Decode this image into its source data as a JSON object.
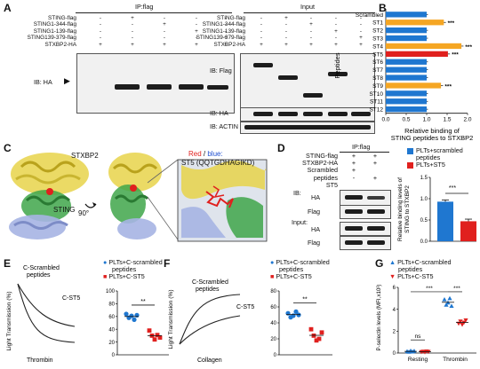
{
  "panels": {
    "A": {
      "letter": "A",
      "ipflag_title": "IP:flag",
      "input_title": "Input",
      "row_labels": [
        "STING-flag",
        "STING1-344-flag",
        "STING1-139-flag",
        "STING139-379-flag",
        "STXBP2-HA"
      ],
      "signs": [
        [
          "-",
          "+",
          "-",
          "-",
          "-"
        ],
        [
          "-",
          "-",
          "+",
          "-",
          "-"
        ],
        [
          "-",
          "-",
          "-",
          "+",
          "-"
        ],
        [
          "-",
          "-",
          "-",
          "-",
          "+"
        ],
        [
          "+",
          "+",
          "+",
          "+",
          "+"
        ]
      ],
      "ib_ha": "IB:  HA",
      "ib_flag": "IB:  Flag",
      "ib_ha2": "IB:  HA",
      "ib_actin": "IB:  ACTIN"
    },
    "B": {
      "letter": "B",
      "ylabel": "Peptides",
      "xlabel_line1": "Relative binding of",
      "xlabel_line2": "STING peptides to STXBP2",
      "stars": "***"
    },
    "C": {
      "letter": "C",
      "stxbp2": "STXBP2",
      "sting": "STING",
      "rotation": "90°",
      "legend_red": "Red",
      "legend_sep": " / ",
      "legend_blue": "blue:",
      "legend_tail": "",
      "st5": "ST5 (QQTGDHAGIKD)"
    },
    "D": {
      "letter": "D",
      "ipflag_title": "IP:flag",
      "rows": [
        "STING-flag",
        "STXBP2-HA",
        "Scrambled",
        "peptides",
        "ST5"
      ],
      "signs": [
        [
          "+",
          "+"
        ],
        [
          "+",
          "+"
        ],
        [
          "+",
          ""
        ],
        [
          "",
          ""
        ],
        [
          "-",
          "+"
        ]
      ],
      "ib": "IB:",
      "ha": "HA",
      "flag": "Flag",
      "input": "Input:",
      "ha2": "HA",
      "flag2": "Flag",
      "legend1": "PLTs+scrambled",
      "legend1b": "peptides",
      "legend2": "PLTs+ST5",
      "ylabel1": "Relative binding levels of",
      "ylabel2": "STING to STXBP2",
      "stars": "***"
    },
    "E": {
      "letter": "E",
      "curve_label1": "C-Scrambled",
      "curve_label2": "peptides",
      "curve_label3": "C-ST5",
      "xlabel": "Thrombin",
      "ylabel": "Light Transmission (%)",
      "legend1": "PLTs+C-scrambled",
      "legend1b": "peptides",
      "legend2": "PLTs+C-ST5",
      "dot_ylabel": "Platelet Aggregation (%)",
      "stars": "**"
    },
    "F": {
      "letter": "F",
      "curve_label1": "C-Scrambled",
      "curve_label2": "peptides",
      "curve_label3": "C-ST5",
      "xlabel": "Collagen",
      "ylabel": "Light Transmission (%)",
      "legend1": "PLTs+C-scrambled",
      "legend1b": "peptides",
      "legend2": "PLTs+C-ST5",
      "dot_ylabel": "Platelet Aggregation (%)",
      "stars": "**"
    },
    "G": {
      "letter": "G",
      "legend1": "PLTs+C-scrambled",
      "legend1b": "peptides",
      "legend2": "PLTs+C-ST5",
      "ylabel": "P-selectin levels (MFI,x10³)",
      "ns": "ns",
      "stars1": "***",
      "stars2": "***"
    }
  },
  "colors": {
    "blue": "#1f77d0",
    "red": "#e0201e",
    "orange": "#f5a623",
    "yellow": "#e8d44a",
    "green": "#3fa64a",
    "lavender": "#a6b4e3"
  },
  "chart_data": [
    {
      "id": "B",
      "type": "bar",
      "orientation": "horizontal",
      "categories": [
        "Scrambled",
        "ST1",
        "ST2",
        "ST3",
        "ST4",
        "ST5",
        "ST6",
        "ST7",
        "ST8",
        "ST9",
        "ST10",
        "ST11",
        "ST12"
      ],
      "values": [
        1.0,
        1.42,
        1.0,
        1.0,
        1.85,
        1.52,
        1.0,
        1.0,
        1.0,
        1.35,
        1.0,
        1.0,
        1.0
      ],
      "errors": [
        0.03,
        0.05,
        0.03,
        0.03,
        0.05,
        0.05,
        0.03,
        0.03,
        0.03,
        0.05,
        0.03,
        0.03,
        0.03
      ],
      "highlight": {
        "ST1": "orange",
        "ST4": "orange",
        "ST9": "orange",
        "ST5": "red"
      },
      "significant": [
        "ST1",
        "ST4",
        "ST5",
        "ST9"
      ],
      "xlim": [
        0,
        2.0
      ],
      "xticks": [
        "0.0",
        "0.5",
        "1.0",
        "1.5",
        "2.0"
      ],
      "ylabel": "Peptides"
    },
    {
      "id": "D",
      "type": "bar",
      "categories": [
        "PLTs+scrambled peptides",
        "PLTs+ST5"
      ],
      "values": [
        0.93,
        0.47
      ],
      "errors": [
        0.04,
        0.05
      ],
      "ylim": [
        0,
        1.5
      ],
      "yticks": [
        "0.0",
        "0.5",
        "1.0",
        "1.5"
      ]
    },
    {
      "id": "E",
      "type": "scatter",
      "groups": [
        {
          "name": "PLTs+C-scrambled peptides",
          "values": [
            64,
            58,
            61,
            55,
            62
          ]
        },
        {
          "name": "PLTs+C-ST5",
          "values": [
            38,
            30,
            24,
            31,
            27
          ]
        }
      ],
      "ylim": [
        0,
        100
      ],
      "yticks": [
        "0",
        "20",
        "40",
        "60",
        "80",
        "100"
      ]
    },
    {
      "id": "F",
      "type": "scatter",
      "groups": [
        {
          "name": "PLTs+C-scrambled peptides",
          "values": [
            52,
            47,
            49,
            54,
            50
          ]
        },
        {
          "name": "PLTs+C-ST5",
          "values": [
            32,
            24,
            18,
            20,
            28
          ]
        }
      ],
      "ylim": [
        0,
        80
      ],
      "yticks": [
        "0",
        "20",
        "40",
        "60",
        "80"
      ]
    },
    {
      "id": "G",
      "type": "scatter",
      "categories": [
        "Resting",
        "Thrombin"
      ],
      "groups": [
        {
          "name": "PLTs+C-scrambled peptides",
          "resting": [
            0.15,
            0.1,
            0.2,
            0.12,
            0.18
          ],
          "thrombin": [
            4.9,
            4.4,
            4.6,
            5.0,
            4.3
          ]
        },
        {
          "name": "PLTs+C-ST5",
          "resting": [
            0.1,
            0.14,
            0.08,
            0.16,
            0.12
          ],
          "thrombin": [
            2.7,
            2.9,
            2.6,
            2.8,
            3.0
          ]
        }
      ],
      "ylim": [
        0,
        6
      ],
      "yticks": [
        "0",
        "2",
        "4",
        "6"
      ]
    }
  ]
}
